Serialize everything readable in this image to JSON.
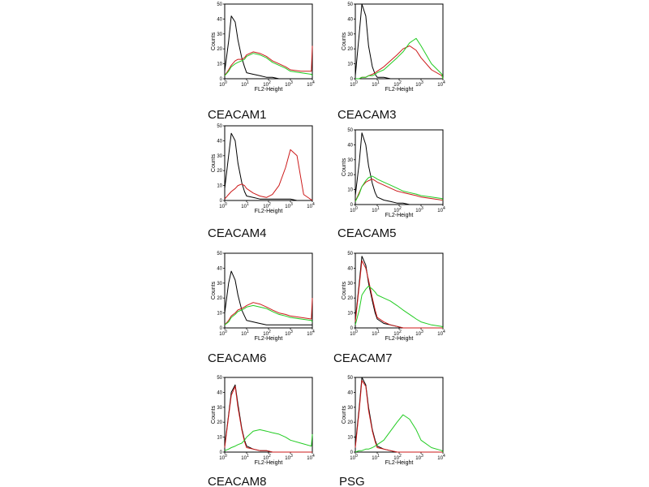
{
  "colors": {
    "control": "#000000",
    "red": "#cc1a1a",
    "green": "#22cc22"
  },
  "chart_data": [
    {
      "type": "line",
      "title": "CEACAM1",
      "xlabel": "FL2-Height",
      "ylabel": "Counts",
      "xscale": "log",
      "xlim": [
        1,
        10000
      ],
      "ylim": [
        0,
        50
      ],
      "yticks": [
        0,
        10,
        20,
        30,
        40,
        50
      ],
      "xticks": [
        1,
        10,
        100,
        1000,
        10000
      ],
      "x": [
        1,
        1.5,
        2,
        3,
        4,
        6,
        8,
        10,
        20,
        40,
        80,
        150,
        300,
        600,
        1000,
        3000,
        9000,
        10000
      ],
      "series": [
        {
          "color": "black",
          "values": [
            5,
            25,
            42,
            38,
            26,
            14,
            8,
            4,
            3,
            2,
            1,
            1,
            0,
            0,
            0,
            0,
            0,
            0
          ]
        },
        {
          "color": "red",
          "values": [
            2,
            6,
            9,
            12,
            13,
            13,
            14,
            16,
            18,
            17,
            15,
            12,
            10,
            8,
            6,
            5,
            5,
            22
          ]
        },
        {
          "color": "green",
          "values": [
            2,
            5,
            8,
            10,
            11,
            12,
            13,
            15,
            17,
            16,
            14,
            11,
            9,
            7,
            5,
            4,
            3,
            2
          ]
        }
      ]
    },
    {
      "type": "line",
      "title": "CEACAM3",
      "xlabel": "FL2-Height",
      "ylabel": "Counts",
      "xscale": "log",
      "xlim": [
        1,
        10000
      ],
      "ylim": [
        0,
        50
      ],
      "yticks": [
        0,
        10,
        20,
        30,
        40,
        50
      ],
      "xticks": [
        1,
        10,
        100,
        1000,
        10000
      ],
      "x": [
        1,
        1.5,
        2,
        3,
        4,
        6,
        8,
        10,
        20,
        40,
        80,
        150,
        300,
        600,
        1000,
        3000,
        9000,
        10000
      ],
      "series": [
        {
          "color": "black",
          "values": [
            2,
            30,
            50,
            42,
            22,
            8,
            3,
            1,
            1,
            0,
            0,
            0,
            0,
            0,
            0,
            0,
            0,
            0
          ]
        },
        {
          "color": "red",
          "values": [
            0,
            0,
            1,
            1,
            2,
            3,
            4,
            5,
            8,
            12,
            16,
            20,
            22,
            19,
            14,
            6,
            2,
            0
          ]
        },
        {
          "color": "green",
          "values": [
            0,
            0,
            1,
            1,
            2,
            2,
            3,
            4,
            6,
            10,
            14,
            18,
            24,
            27,
            22,
            10,
            3,
            0
          ]
        }
      ]
    },
    {
      "type": "line",
      "title": "CEACAM4",
      "xlabel": "FL2-Height",
      "ylabel": "Counts",
      "xscale": "log",
      "xlim": [
        1,
        10000
      ],
      "ylim": [
        0,
        50
      ],
      "yticks": [
        0,
        10,
        20,
        30,
        40,
        50
      ],
      "xticks": [
        1,
        10,
        100,
        1000,
        10000
      ],
      "x": [
        1,
        1.5,
        2,
        3,
        4,
        6,
        8,
        10,
        20,
        40,
        80,
        150,
        300,
        600,
        1000,
        2000,
        4000,
        10000
      ],
      "series": [
        {
          "color": "black",
          "values": [
            8,
            30,
            45,
            40,
            25,
            12,
            6,
            3,
            2,
            1,
            1,
            1,
            1,
            1,
            1,
            0,
            0,
            0
          ]
        },
        {
          "color": "red",
          "values": [
            1,
            4,
            6,
            8,
            10,
            11,
            10,
            8,
            5,
            3,
            2,
            4,
            10,
            22,
            34,
            30,
            4,
            0
          ]
        }
      ]
    },
    {
      "type": "line",
      "title": "CEACAM5",
      "xlabel": "FL2-Height",
      "ylabel": "Counts",
      "xscale": "log",
      "xlim": [
        1,
        10000
      ],
      "ylim": [
        0,
        50
      ],
      "yticks": [
        0,
        10,
        20,
        30,
        40,
        50
      ],
      "xticks": [
        1,
        10,
        100,
        1000,
        10000
      ],
      "x": [
        1,
        1.5,
        2,
        3,
        4,
        6,
        8,
        10,
        20,
        40,
        80,
        150,
        300,
        600,
        1000,
        3000,
        9000,
        10000
      ],
      "series": [
        {
          "color": "black",
          "values": [
            6,
            28,
            48,
            40,
            26,
            14,
            8,
            5,
            3,
            2,
            1,
            1,
            0,
            0,
            0,
            0,
            0,
            0
          ]
        },
        {
          "color": "red",
          "values": [
            2,
            8,
            12,
            15,
            16,
            17,
            16,
            15,
            13,
            11,
            9,
            8,
            7,
            6,
            5,
            4,
            3,
            3
          ]
        },
        {
          "color": "green",
          "values": [
            2,
            7,
            12,
            16,
            18,
            19,
            18,
            17,
            15,
            13,
            11,
            9,
            8,
            7,
            6,
            5,
            4,
            3
          ]
        }
      ]
    },
    {
      "type": "line",
      "title": "CEACAM6",
      "xlabel": "FL2-Height",
      "ylabel": "Counts",
      "xscale": "log",
      "xlim": [
        1,
        10000
      ],
      "ylim": [
        0,
        50
      ],
      "yticks": [
        0,
        10,
        20,
        30,
        40,
        50
      ],
      "xticks": [
        1,
        10,
        100,
        1000,
        10000
      ],
      "x": [
        1,
        1.5,
        2,
        3,
        4,
        6,
        8,
        10,
        20,
        40,
        80,
        150,
        300,
        600,
        1000,
        3000,
        9000,
        10000
      ],
      "series": [
        {
          "color": "black",
          "values": [
            10,
            30,
            38,
            32,
            22,
            12,
            8,
            5,
            4,
            3,
            2,
            2,
            2,
            2,
            2,
            2,
            2,
            2
          ]
        },
        {
          "color": "red",
          "values": [
            2,
            5,
            8,
            10,
            12,
            13,
            14,
            15,
            17,
            16,
            14,
            12,
            10,
            9,
            8,
            7,
            6,
            20
          ]
        },
        {
          "color": "green",
          "values": [
            2,
            4,
            7,
            9,
            11,
            12,
            13,
            14,
            15,
            14,
            13,
            11,
            9,
            8,
            7,
            6,
            5,
            4
          ]
        }
      ]
    },
    {
      "type": "line",
      "title": "CEACAM7",
      "xlabel": "FL2-Height",
      "ylabel": "Counts",
      "xscale": "log",
      "xlim": [
        1,
        10000
      ],
      "ylim": [
        0,
        50
      ],
      "yticks": [
        0,
        10,
        20,
        30,
        40,
        50
      ],
      "xticks": [
        1,
        10,
        100,
        1000,
        10000
      ],
      "x": [
        1,
        1.5,
        2,
        3,
        4,
        6,
        8,
        10,
        20,
        40,
        80,
        150,
        300,
        600,
        1000,
        3000,
        9000,
        10000
      ],
      "series": [
        {
          "color": "black",
          "values": [
            5,
            30,
            48,
            42,
            30,
            18,
            10,
            6,
            3,
            2,
            1,
            0,
            0,
            0,
            0,
            0,
            0,
            0
          ]
        },
        {
          "color": "red",
          "values": [
            4,
            28,
            45,
            40,
            32,
            20,
            12,
            7,
            4,
            2,
            1,
            0,
            0,
            0,
            0,
            0,
            0,
            0
          ]
        },
        {
          "color": "green",
          "values": [
            2,
            12,
            22,
            26,
            28,
            26,
            24,
            22,
            20,
            18,
            15,
            12,
            9,
            6,
            4,
            2,
            1,
            0
          ]
        }
      ]
    },
    {
      "type": "line",
      "title": "CEACAM8",
      "xlabel": "FL2-Height",
      "ylabel": "Counts",
      "xscale": "log",
      "xlim": [
        1,
        10000
      ],
      "ylim": [
        0,
        50
      ],
      "yticks": [
        0,
        10,
        20,
        30,
        40,
        50
      ],
      "xticks": [
        1,
        10,
        100,
        1000,
        10000
      ],
      "x": [
        1,
        1.5,
        2,
        3,
        4,
        6,
        8,
        10,
        20,
        40,
        80,
        150,
        300,
        600,
        1000,
        3000,
        9000,
        10000
      ],
      "series": [
        {
          "color": "black",
          "values": [
            4,
            25,
            40,
            45,
            32,
            16,
            8,
            4,
            2,
            1,
            1,
            0,
            0,
            0,
            0,
            0,
            0,
            0
          ]
        },
        {
          "color": "red",
          "values": [
            3,
            24,
            38,
            44,
            30,
            15,
            7,
            3,
            2,
            1,
            1,
            0,
            0,
            0,
            0,
            0,
            0,
            0
          ]
        },
        {
          "color": "green",
          "values": [
            1,
            2,
            3,
            4,
            5,
            6,
            8,
            10,
            14,
            15,
            14,
            13,
            12,
            10,
            8,
            6,
            4,
            12
          ]
        }
      ]
    },
    {
      "type": "line",
      "title": "PSG",
      "xlabel": "FL2-Height",
      "ylabel": "Counts",
      "xscale": "log",
      "xlim": [
        1,
        10000
      ],
      "ylim": [
        0,
        50
      ],
      "yticks": [
        0,
        10,
        20,
        30,
        40,
        50
      ],
      "xticks": [
        1,
        10,
        100,
        1000,
        10000
      ],
      "x": [
        1,
        1.5,
        2,
        3,
        4,
        6,
        8,
        10,
        20,
        40,
        80,
        150,
        300,
        600,
        1000,
        3000,
        9000,
        10000
      ],
      "series": [
        {
          "color": "black",
          "values": [
            4,
            30,
            50,
            45,
            30,
            15,
            8,
            4,
            2,
            1,
            0,
            0,
            0,
            0,
            0,
            0,
            0,
            0
          ]
        },
        {
          "color": "red",
          "values": [
            3,
            28,
            48,
            44,
            28,
            14,
            7,
            3,
            2,
            1,
            0,
            0,
            0,
            0,
            0,
            0,
            0,
            0
          ]
        },
        {
          "color": "green",
          "values": [
            0,
            1,
            1,
            2,
            2,
            3,
            4,
            5,
            8,
            14,
            20,
            25,
            22,
            15,
            8,
            3,
            1,
            0
          ]
        }
      ]
    }
  ]
}
